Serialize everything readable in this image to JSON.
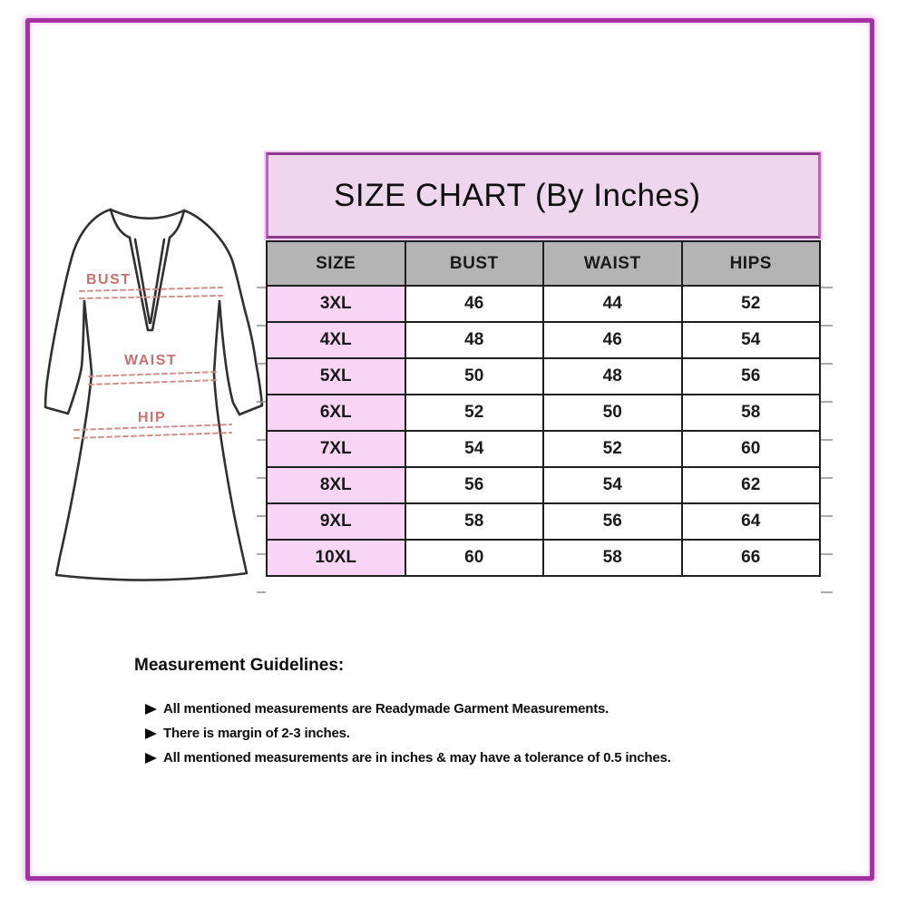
{
  "title": "SIZE CHART (By Inches)",
  "chart_data": {
    "type": "table",
    "title": "SIZE CHART (By Inches)",
    "units": "inches",
    "columns": [
      "SIZE",
      "BUST",
      "WAIST",
      "HIPS"
    ],
    "rows": [
      [
        "3XL",
        46,
        44,
        52
      ],
      [
        "4XL",
        48,
        46,
        54
      ],
      [
        "5XL",
        50,
        48,
        56
      ],
      [
        "6XL",
        52,
        50,
        58
      ],
      [
        "7XL",
        54,
        52,
        60
      ],
      [
        "8XL",
        56,
        54,
        62
      ],
      [
        "9XL",
        58,
        56,
        64
      ],
      [
        "10XL",
        60,
        58,
        66
      ]
    ]
  },
  "garment": {
    "labels": {
      "bust": "BUST",
      "waist": "WAIST",
      "hip": "HIP"
    }
  },
  "guidelines": {
    "heading": "Measurement Guidelines:",
    "items": [
      "All mentioned measurements are Readymade Garment Measurements.",
      "There is margin of 2-3 inches.",
      "All mentioned measurements are in inches & may have a tolerance of 0.5 inches."
    ]
  },
  "colors": {
    "frame_border": "#a232a2",
    "title_bg": "#eed7ec",
    "title_border": "#8d3b8d",
    "header_bg": "#b4b4b4",
    "size_column_bg": "#f8d5f4",
    "grid_line": "#1f1f1f",
    "garment_label": "#c4625f",
    "garment_dash": "#d18983"
  }
}
